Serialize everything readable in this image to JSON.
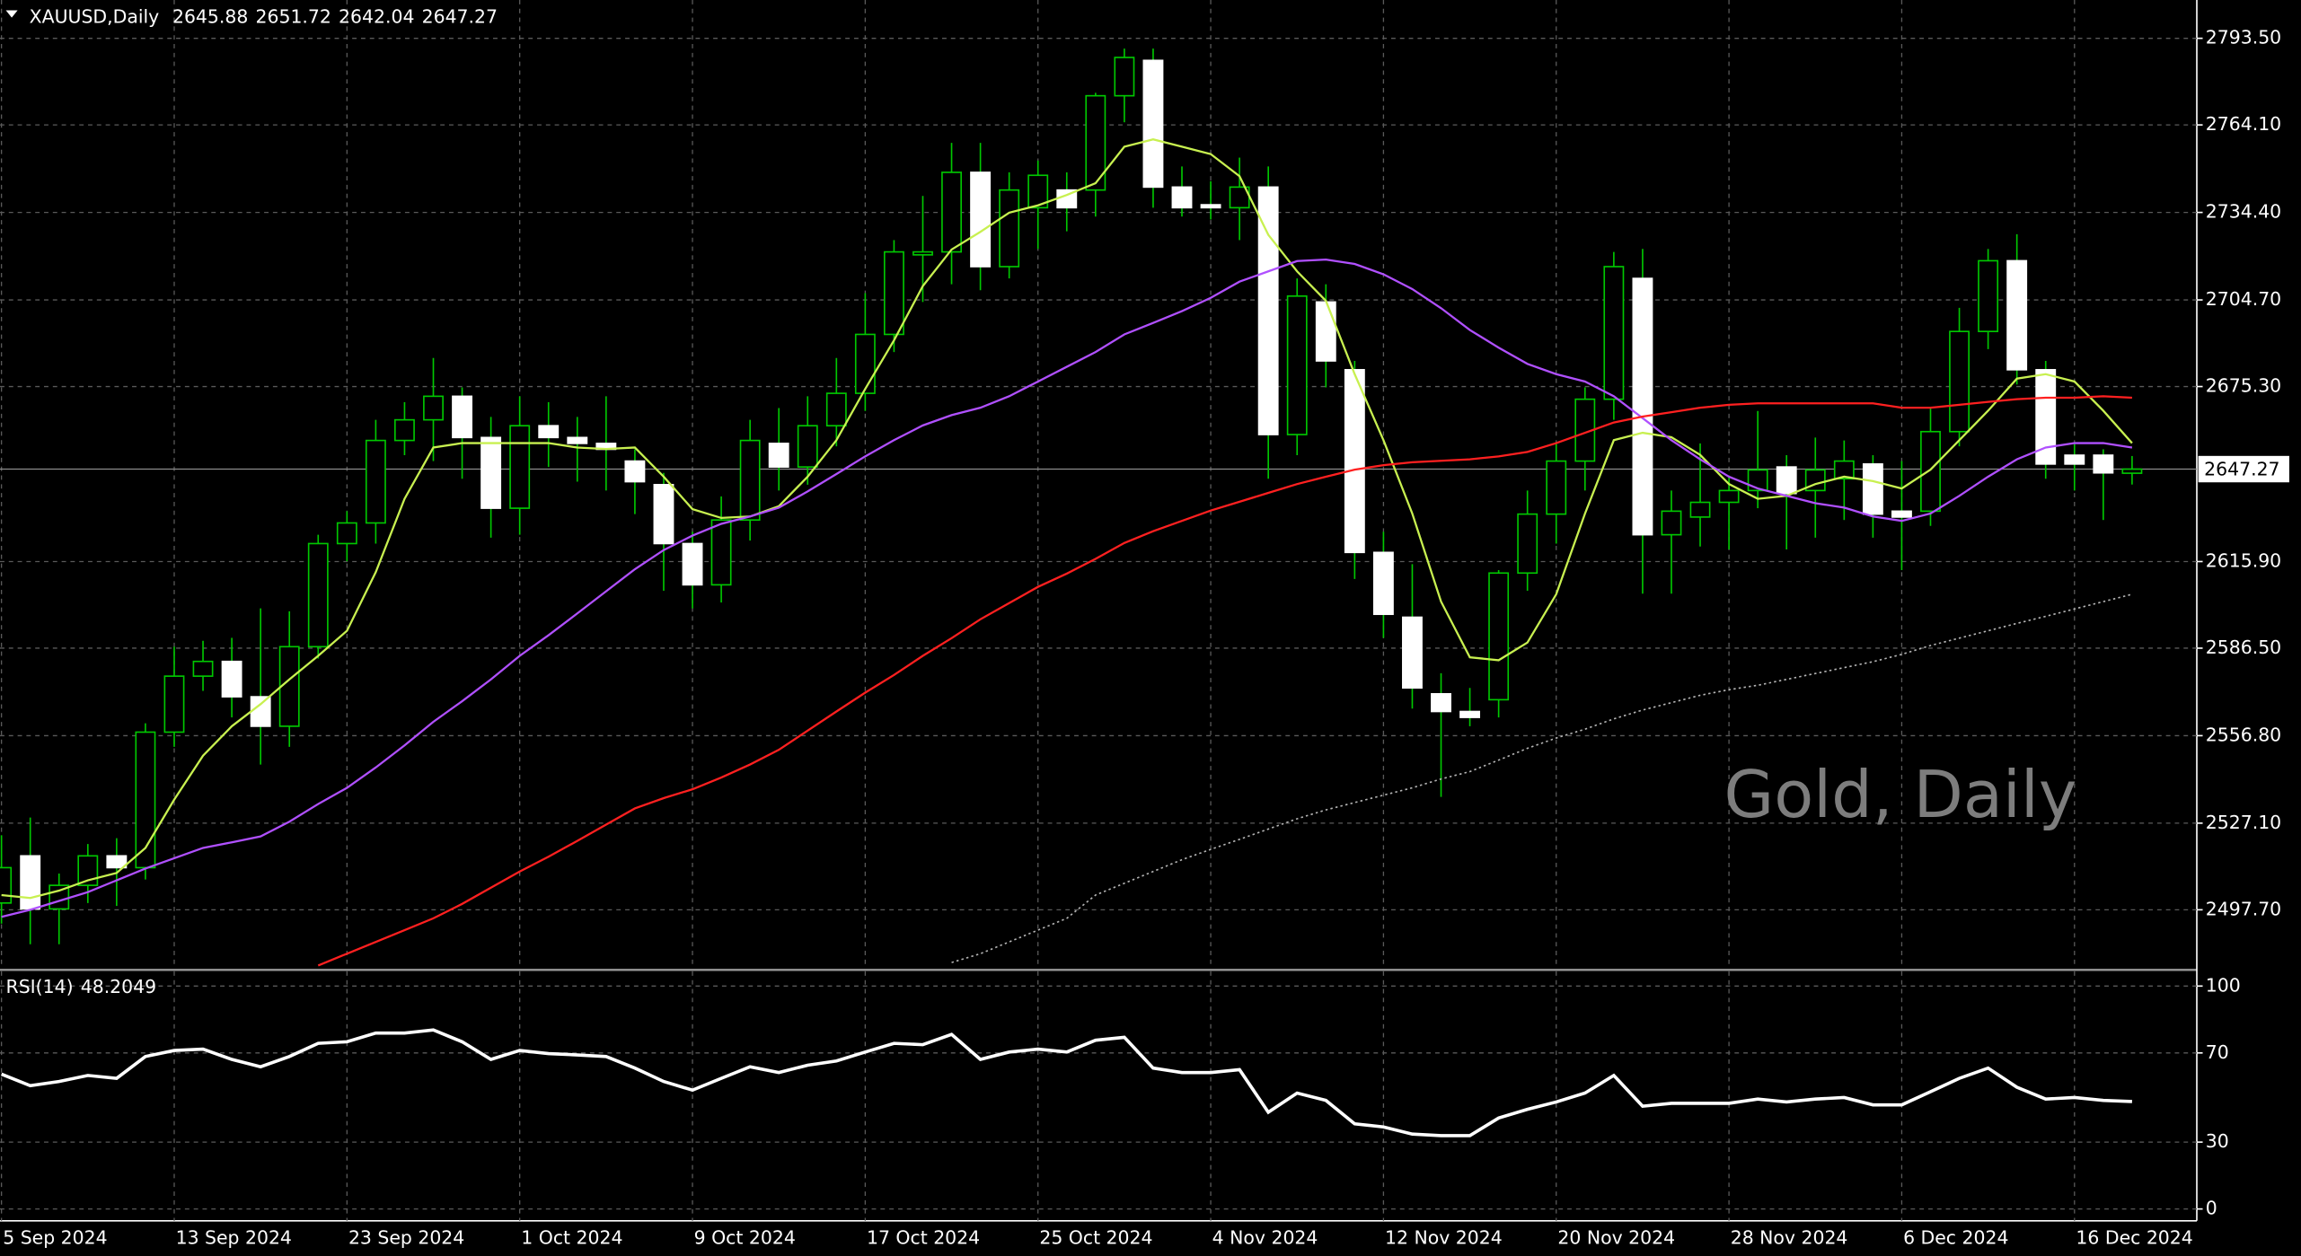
{
  "chart_data": [
    {
      "type": "candlestick",
      "title": "XAUUSD,Daily",
      "watermark": "Gold, Daily",
      "categories": [
        "5 Sep 2024",
        null,
        null,
        null,
        null,
        null,
        "13 Sep 2024",
        null,
        null,
        null,
        null,
        null,
        "23 Sep 2024",
        null,
        null,
        null,
        null,
        null,
        "1 Oct 2024",
        null,
        null,
        null,
        null,
        null,
        "9 Oct 2024",
        null,
        null,
        null,
        null,
        null,
        "17 Oct 2024",
        null,
        null,
        null,
        null,
        null,
        "25 Oct 2024",
        null,
        null,
        null,
        null,
        null,
        "4 Nov 2024",
        null,
        null,
        null,
        null,
        null,
        "12 Nov 2024",
        null,
        null,
        null,
        null,
        null,
        "20 Nov 2024",
        null,
        null,
        null,
        null,
        null,
        "28 Nov 2024",
        null,
        null,
        null,
        null,
        null,
        "6 Dec 2024",
        null,
        null,
        null,
        null,
        null,
        "16 Dec 2024",
        null,
        null
      ],
      "open": [
        2500,
        2516,
        2498,
        2506,
        2516,
        2512,
        2558,
        2577,
        2582,
        2570,
        2560,
        2587,
        2622,
        2629,
        2657,
        2664,
        2672,
        2658,
        2634,
        2662,
        2658,
        2656,
        2650,
        2642,
        2622,
        2608,
        2630,
        2656,
        2648,
        2662,
        2673,
        2693,
        2720,
        2721,
        2748,
        2716,
        2736,
        2742,
        2742,
        2774,
        2786,
        2743,
        2737,
        2736,
        2743,
        2659,
        2704,
        2681,
        2619,
        2597,
        2571,
        2565,
        2569,
        2612,
        2632,
        2650,
        2671,
        2712,
        2625,
        2631,
        2636,
        2640,
        2648,
        2640,
        2644,
        2649,
        2633,
        2633,
        2660,
        2694,
        2718,
        2681,
        2652,
        2652,
        2645.88
      ],
      "high": [
        2523,
        2529,
        2510,
        2520,
        2522,
        2561,
        2587,
        2589,
        2590,
        2600,
        2599,
        2625,
        2633,
        2664,
        2670,
        2685,
        2675,
        2665,
        2672,
        2670,
        2665,
        2672,
        2654,
        2646,
        2626,
        2638,
        2664,
        2668,
        2672,
        2685,
        2707,
        2725,
        2740,
        2758,
        2758,
        2748,
        2752,
        2748,
        2775,
        2790,
        2790,
        2750,
        2745,
        2753,
        2750,
        2712,
        2710,
        2684,
        2626,
        2615,
        2578,
        2573,
        2613,
        2640,
        2656,
        2675,
        2721,
        2722,
        2640,
        2656,
        2645,
        2667,
        2652,
        2658,
        2657,
        2652,
        2650,
        2668,
        2702,
        2722,
        2727,
        2684,
        2656,
        2654,
        2651.72
      ],
      "low": [
        2493,
        2486,
        2486,
        2500,
        2499,
        2508,
        2553,
        2572,
        2563,
        2547,
        2553,
        2583,
        2616,
        2622,
        2652,
        2650,
        2644,
        2624,
        2625,
        2648,
        2643,
        2640,
        2632,
        2606,
        2600,
        2602,
        2623,
        2640,
        2642,
        2655,
        2667,
        2687,
        2704,
        2710,
        2708,
        2712,
        2722,
        2728,
        2733,
        2765,
        2736,
        2733,
        2732,
        2725,
        2644,
        2652,
        2675,
        2610,
        2590,
        2566,
        2536,
        2560,
        2563,
        2606,
        2622,
        2640,
        2664,
        2605,
        2605,
        2621,
        2620,
        2634,
        2620,
        2624,
        2630,
        2624,
        2613,
        2628,
        2655,
        2688,
        2676,
        2644,
        2640,
        2630,
        2642.04
      ],
      "close": [
        2512,
        2498,
        2506,
        2516,
        2512,
        2558,
        2577,
        2582,
        2570,
        2560,
        2587,
        2622,
        2629,
        2657,
        2664,
        2672,
        2658,
        2634,
        2662,
        2658,
        2656,
        2654,
        2643,
        2622,
        2608,
        2630,
        2657,
        2648,
        2662,
        2673,
        2693,
        2721,
        2721,
        2748,
        2716,
        2742,
        2747,
        2736,
        2774,
        2787,
        2743,
        2736,
        2736,
        2743,
        2659,
        2706,
        2684,
        2619,
        2598,
        2573,
        2565,
        2563,
        2612,
        2632,
        2650,
        2671,
        2716,
        2625,
        2633,
        2636,
        2640,
        2647,
        2639,
        2647,
        2650,
        2632,
        2631,
        2660,
        2694,
        2718,
        2681,
        2649,
        2649,
        2646,
        2647.27
      ],
      "bull_color": "#00c800",
      "bear_color": "#ffffff",
      "wick_color": "#00c800",
      "overlays": [
        {
          "color": "#c8f050",
          "style": "solid",
          "values": [
            2502.7,
            2501.7,
            2504.2,
            2507.7,
            2510.2,
            2518.7,
            2535.1,
            2550.0,
            2560.0,
            2567.5,
            2575.9,
            2583.9,
            2592.4,
            2612.3,
            2637.2,
            2654.6,
            2656.1,
            2656.1,
            2656.1,
            2656.1,
            2654.6,
            2654.1,
            2654.6,
            2644.7,
            2633.7,
            2630.7,
            2631.2,
            2634.7,
            2644.7,
            2657.1,
            2674.5,
            2691.0,
            2709.4,
            2721.8,
            2727.8,
            2734.3,
            2736.8,
            2740.3,
            2744.3,
            2756.7,
            2759.2,
            2756.7,
            2754.2,
            2746.7,
            2726.8,
            2714.4,
            2704.4,
            2679.5,
            2657.1,
            2632.2,
            2602.3,
            2583.4,
            2582.4,
            2588.4,
            2604.8,
            2632.2,
            2657.1,
            2659.6,
            2658.1,
            2652.1,
            2642.2,
            2637.2,
            2638.2,
            2642.2,
            2644.7,
            2643.2,
            2640.7,
            2647.1,
            2657.1,
            2667.1,
            2678.0,
            2679.5,
            2677.0,
            2667.1,
            2656.1
          ]
        },
        {
          "color": "#b050ff",
          "style": "solid",
          "values": [
            2495.3,
            2497.7,
            2500.7,
            2503.7,
            2507.7,
            2511.7,
            2515.2,
            2518.7,
            2520.6,
            2522.6,
            2527.6,
            2533.6,
            2539.1,
            2546.0,
            2553.5,
            2561.5,
            2568.5,
            2575.9,
            2583.9,
            2590.9,
            2598.3,
            2605.8,
            2613.3,
            2619.8,
            2624.7,
            2628.7,
            2631.2,
            2634.2,
            2639.7,
            2645.6,
            2651.6,
            2657.1,
            2662.1,
            2665.6,
            2668.1,
            2672.0,
            2677.0,
            2682.0,
            2687.0,
            2693.0,
            2696.9,
            2700.9,
            2705.4,
            2710.9,
            2714.4,
            2717.9,
            2718.4,
            2716.9,
            2713.4,
            2708.4,
            2701.9,
            2694.5,
            2688.5,
            2683.0,
            2679.5,
            2677.0,
            2672.0,
            2664.6,
            2657.1,
            2650.6,
            2644.7,
            2640.7,
            2638.2,
            2635.7,
            2634.2,
            2631.2,
            2629.7,
            2632.2,
            2638.2,
            2644.7,
            2650.6,
            2654.6,
            2656.1,
            2656.1,
            2654.6
          ]
        },
        {
          "color": "#ff2020",
          "style": "solid",
          "values": [
            null,
            null,
            null,
            null,
            null,
            null,
            null,
            null,
            null,
            null,
            null,
            2478.8,
            2482.8,
            2486.8,
            2490.8,
            2494.8,
            2499.7,
            2505.2,
            2510.7,
            2515.7,
            2521.1,
            2526.6,
            2532.1,
            2535.6,
            2538.6,
            2542.6,
            2547.0,
            2552.0,
            2558.5,
            2565.0,
            2571.4,
            2577.4,
            2583.9,
            2589.9,
            2596.3,
            2601.8,
            2607.3,
            2611.8,
            2616.8,
            2622.2,
            2626.2,
            2629.7,
            2633.2,
            2636.2,
            2639.2,
            2642.2,
            2644.7,
            2647.1,
            2648.6,
            2649.6,
            2650.1,
            2650.6,
            2651.6,
            2653.1,
            2656.1,
            2659.6,
            2663.1,
            2665.1,
            2666.6,
            2668.1,
            2669.1,
            2669.6,
            2669.6,
            2669.6,
            2669.6,
            2669.6,
            2668.1,
            2668.1,
            2669.1,
            2670.1,
            2671.0,
            2671.5,
            2671.5,
            2672.0,
            2671.5
          ]
        },
        {
          "color": "#b4b4b4",
          "style": "dotted",
          "values": [
            null,
            null,
            null,
            null,
            null,
            null,
            null,
            null,
            null,
            null,
            null,
            null,
            null,
            null,
            null,
            null,
            null,
            null,
            null,
            null,
            null,
            null,
            null,
            null,
            null,
            null,
            null,
            null,
            null,
            null,
            null,
            null,
            null,
            2479.8,
            2482.8,
            2486.8,
            2490.8,
            2494.8,
            2502.7,
            2506.7,
            2510.7,
            2514.7,
            2518.2,
            2521.6,
            2525.1,
            2528.6,
            2531.6,
            2534.1,
            2536.6,
            2539.1,
            2542.1,
            2544.6,
            2548.5,
            2552.5,
            2556.0,
            2559.0,
            2562.5,
            2565.5,
            2568.0,
            2570.5,
            2572.4,
            2573.9,
            2575.9,
            2577.9,
            2579.9,
            2581.9,
            2584.4,
            2587.4,
            2589.9,
            2592.4,
            2594.9,
            2597.3,
            2599.8,
            2602.3,
            2604.8
          ]
        }
      ],
      "ylim": [
        2477.8,
        2806.5
      ],
      "yticks": [
        {
          "value": 2793.5,
          "label": "2793.50"
        },
        {
          "value": 2764.1,
          "label": "2764.10"
        },
        {
          "value": 2734.4,
          "label": "2734.40"
        },
        {
          "value": 2704.7,
          "label": "2704.70"
        },
        {
          "value": 2675.3,
          "label": "2675.30"
        },
        {
          "value": 2615.9,
          "label": "2615.90"
        },
        {
          "value": 2586.5,
          "label": "2586.50"
        },
        {
          "value": 2556.8,
          "label": "2556.80"
        },
        {
          "value": 2527.1,
          "label": "2527.10"
        },
        {
          "value": 2497.7,
          "label": "2497.70"
        }
      ],
      "grid": true
    },
    {
      "type": "line",
      "title": "RSI(14)",
      "current": 48.2049,
      "color": "#ffffff",
      "values": [
        60.5,
        55.3,
        57.2,
        59.9,
        58.6,
        68.4,
        71.1,
        71.7,
        67.1,
        63.8,
        68.4,
        74.3,
        75.0,
        78.9,
        78.9,
        80.3,
        75.0,
        67.1,
        71.1,
        69.7,
        69.1,
        68.4,
        63.2,
        57.2,
        53.3,
        58.6,
        63.8,
        61.2,
        64.5,
        66.4,
        70.4,
        74.3,
        73.7,
        78.3,
        67.1,
        70.4,
        71.7,
        70.4,
        75.7,
        77.0,
        63.2,
        61.2,
        61.2,
        62.5,
        43.4,
        52.0,
        48.7,
        38.2,
        36.8,
        33.6,
        32.9,
        32.9,
        40.8,
        44.7,
        48.0,
        52.0,
        59.9,
        46.1,
        47.4,
        47.4,
        47.4,
        49.3,
        48.0,
        49.3,
        50.0,
        46.7,
        46.7,
        52.6,
        58.6,
        63.2,
        54.6,
        49.3,
        50.0,
        48.7,
        48.2049
      ],
      "ylim": [
        -5.3,
        106.6
      ],
      "yticks": [
        100,
        70,
        30,
        0
      ],
      "grid": true
    }
  ]
}
